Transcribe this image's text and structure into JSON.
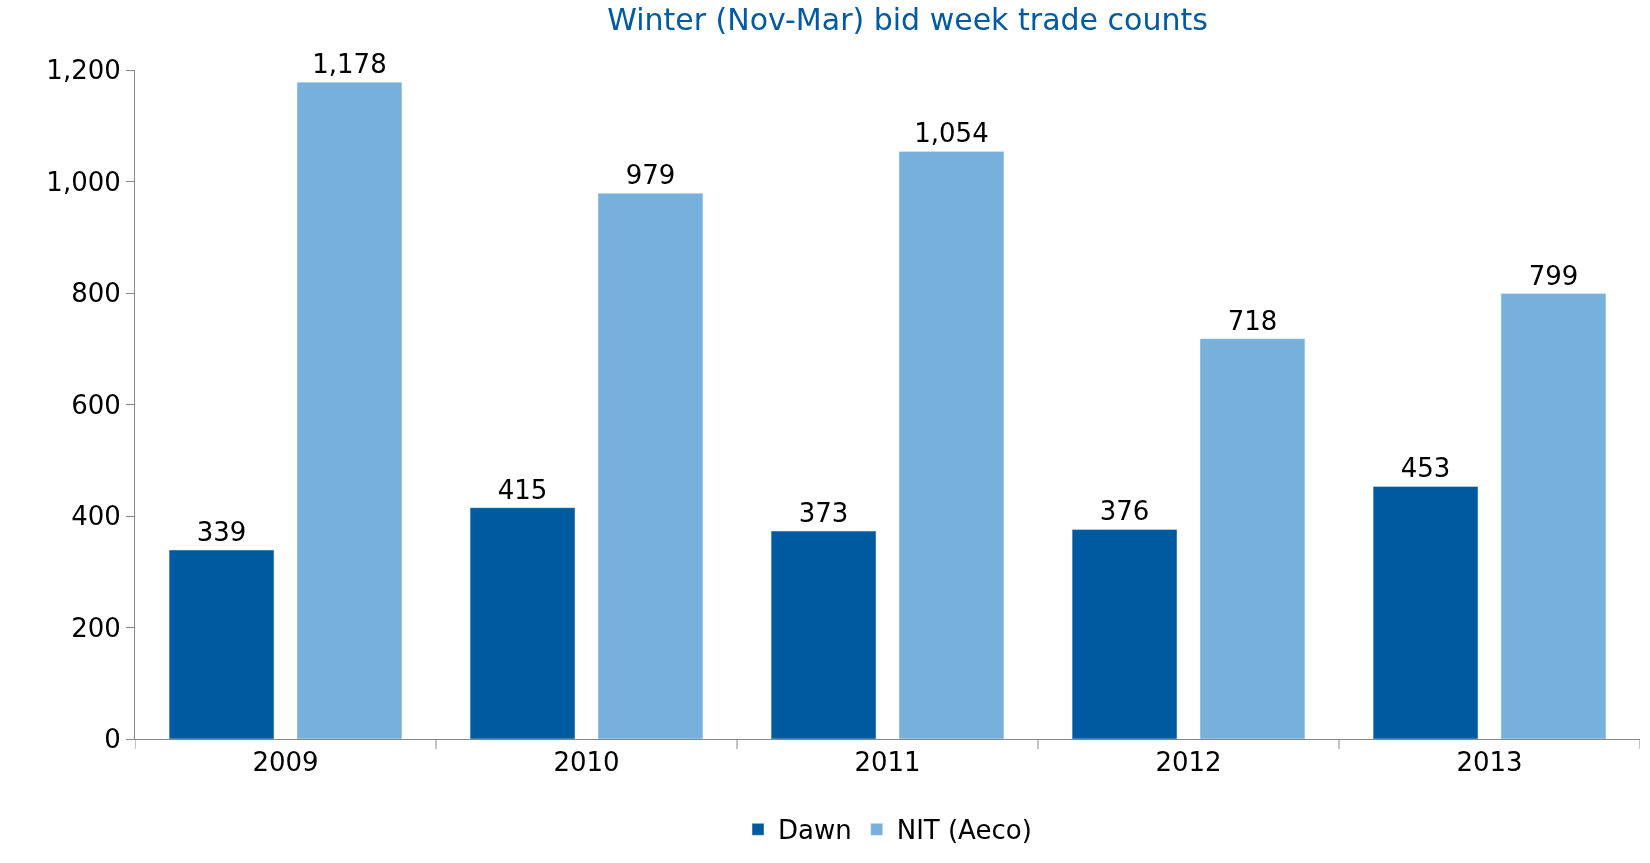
{
  "chart_data": {
    "type": "bar",
    "title": "Winter (Nov-Mar) bid week trade counts",
    "categories": [
      "2009",
      "2010",
      "2011",
      "2012",
      "2013"
    ],
    "series": [
      {
        "name": "Dawn",
        "color": "#005aa0",
        "values": [
          339,
          415,
          373,
          376,
          453
        ],
        "value_labels": [
          "339",
          "415",
          "373",
          "376",
          "453"
        ]
      },
      {
        "name": "NIT (Aeco)",
        "color": "#78b0dc",
        "values": [
          1178,
          979,
          1054,
          718,
          799
        ],
        "value_labels": [
          "1,178",
          "979",
          "1,054",
          "718",
          "799"
        ]
      }
    ],
    "ylim": [
      0,
      1200
    ],
    "yticks": [
      0,
      {
        "value": 200,
        "label": "200"
      },
      {
        "value": 400,
        "label": "400"
      },
      {
        "value": 600,
        "label": "600"
      },
      {
        "value": 800,
        "label": "800"
      },
      {
        "value": 1000,
        "label": "1,000"
      },
      {
        "value": 1200,
        "label": "1,200"
      }
    ],
    "legend": "bottom"
  }
}
